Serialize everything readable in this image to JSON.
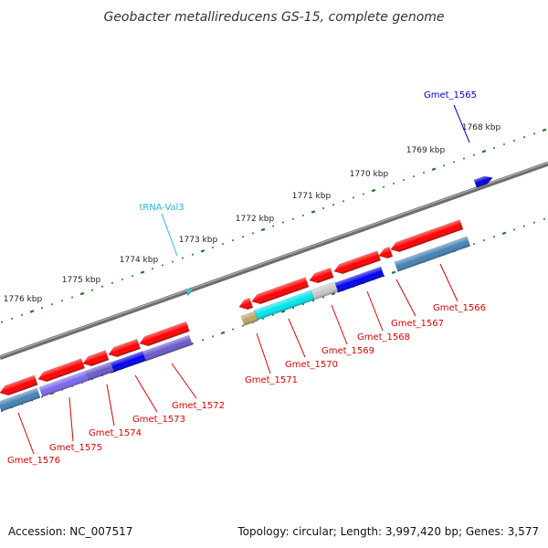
{
  "title": "Geobacter metallireducens GS-15, complete genome",
  "footer": {
    "accession": "Accession: NC_007517",
    "summary": "Topology: circular; Length: 3,997,420 bp; Genes: 3,577"
  },
  "colors": {
    "backbone": "#808080",
    "tick": "#1f7a1f",
    "label_forward_gene": "#0000cc",
    "label_trna": "#29b6d6",
    "label_reverse_gene": "#e00000"
  },
  "kbp_ticks": [
    "1768 kbp",
    "1769 kbp",
    "1770 kbp",
    "1771 kbp",
    "1772 kbp",
    "1773 kbp",
    "1774 kbp",
    "1775 kbp",
    "1776 kbp"
  ],
  "forward_features": [
    {
      "label": "Gmet_1565",
      "type": "gene",
      "color": "#0000dd"
    },
    {
      "label": "tRNA-Val3",
      "type": "trna",
      "color": "#33bbdd"
    }
  ],
  "reverse_features": [
    {
      "label": "Gmet_1566",
      "cds_color": "#ff0000",
      "gene_color": "#4682b4"
    },
    {
      "label": "Gmet_1567",
      "cds_color": "#ff0000",
      "gene_color": null
    },
    {
      "label": "Gmet_1568",
      "cds_color": "#ff0000",
      "gene_color": "#0000ee"
    },
    {
      "label": "Gmet_1569",
      "cds_color": "#ff0000",
      "gene_color": "#c8c8c8"
    },
    {
      "label": "Gmet_1570",
      "cds_color": "#ff0000",
      "gene_color": "#00e5ee"
    },
    {
      "label": "Gmet_1571",
      "cds_color": "#ff0000",
      "gene_color": "#b8a868"
    },
    {
      "label": "Gmet_1572",
      "cds_color": "#ff0000",
      "gene_color": "#6a5acd"
    },
    {
      "label": "Gmet_1573",
      "cds_color": "#ff0000",
      "gene_color": "#0000ee"
    },
    {
      "label": "Gmet_1574",
      "cds_color": "#ff0000",
      "gene_color": "#6a5acd"
    },
    {
      "label": "Gmet_1575",
      "cds_color": "#ff0000",
      "gene_color": "#7b68ee"
    },
    {
      "label": "Gmet_1576",
      "cds_color": "#ff0000",
      "gene_color": "#4682b4"
    }
  ]
}
